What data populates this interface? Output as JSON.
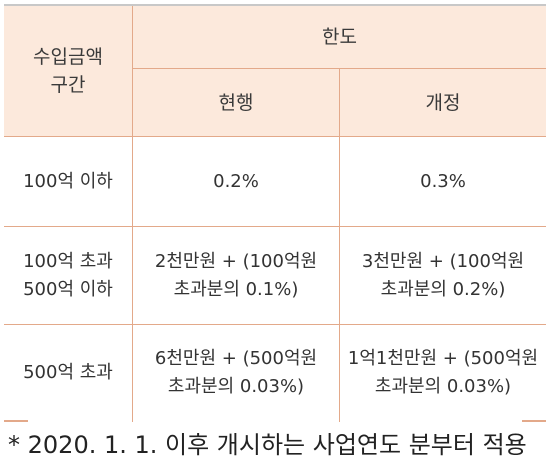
{
  "table": {
    "header": {
      "range_label": "수입금액\n구간",
      "limit_label": "한도",
      "current_label": "현행",
      "revised_label": "개정"
    },
    "rows": [
      {
        "range": "100억 이하",
        "current": "0.2%",
        "revised": "0.3%"
      },
      {
        "range": "100억 초과\n500억 이하",
        "current": "2천만원 + (100억원\n초과분의 0.1%)",
        "revised": "3천만원 + (100억원\n초과분의 0.2%)"
      },
      {
        "range": "500억 초과",
        "current": "6천만원 + (500억원\n초과분의 0.03%)",
        "revised": "1억1천만원 + (500억원\n초과분의 0.03%)"
      }
    ]
  },
  "footnote": "* 2020. 1. 1. 이후 개시하는 사업연도 분부터 적용",
  "colors": {
    "header_bg": "#fce9dc",
    "grid": "#e3a98a"
  }
}
